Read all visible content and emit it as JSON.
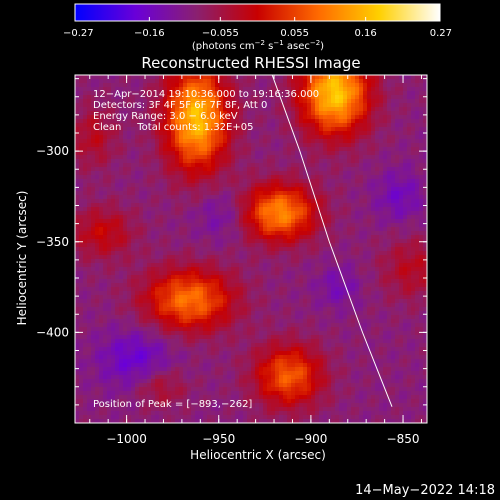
{
  "chart_data": {
    "type": "heatmap",
    "title": "Reconstructed RHESSI Image",
    "xlabel": "Heliocentric X (arcsec)",
    "ylabel": "Heliocentric Y (arcsec)",
    "xlim": [
      -1028,
      -837
    ],
    "ylim": [
      -450,
      -258
    ],
    "x_ticks": [
      -1000,
      -950,
      -900,
      -850
    ],
    "x_tick_labels": [
      "−1000",
      "−950",
      "−900",
      "−850"
    ],
    "y_ticks": [
      -300,
      -350,
      -400
    ],
    "y_tick_labels": [
      "−300",
      "−350",
      "−400"
    ],
    "colorbar": {
      "range": [
        -0.27,
        0.27
      ],
      "ticks": [
        -0.27,
        -0.16,
        -0.055,
        0.055,
        0.16,
        0.27
      ],
      "tick_labels": [
        "−0.27",
        "−0.16",
        "−0.055",
        "0.055",
        "0.16",
        "0.27"
      ],
      "unit_label_parts": [
        "(photons cm",
        "−2",
        " s",
        "−1",
        " asec",
        "−2",
        ")"
      ],
      "colors": [
        "#0000ff",
        "#6a00d8",
        "#8a2070",
        "#c80000",
        "#ff6a00",
        "#ffd000",
        "#ffffff"
      ]
    },
    "background_color": "#6a00b8",
    "annotations": [
      "12−Apr−2014 19:10:36.000 to 19:16:36.000",
      "Detectors: 3F 4F 5F 6F 7F 8F, Att 0",
      "Energy Range: 3.0 − 6.0 keV",
      "Clean     Total counts: 1.32E+05"
    ],
    "peak_label": "Position of Peak = [−893,−262]",
    "peak": [
      -893,
      -262
    ],
    "limb_curve": [
      [
        -921,
        -258
      ],
      [
        -906,
        -300
      ],
      [
        -890,
        -350
      ],
      [
        -872,
        -400
      ],
      [
        -856,
        -441
      ]
    ],
    "sources": [
      {
        "x": -962,
        "y": -282,
        "sx": 12,
        "sy": 20,
        "amp": 0.26
      },
      {
        "x": -887,
        "y": -268,
        "sx": 13,
        "sy": 16,
        "amp": 0.27
      },
      {
        "x": -917,
        "y": -334,
        "sx": 14,
        "sy": 11,
        "amp": 0.21
      },
      {
        "x": -966,
        "y": -382,
        "sx": 17,
        "sy": 12,
        "amp": 0.19
      },
      {
        "x": -1013,
        "y": -345,
        "sx": 12,
        "sy": 10,
        "amp": 0.09
      },
      {
        "x": -912,
        "y": -424,
        "sx": 13,
        "sy": 12,
        "amp": 0.17
      },
      {
        "x": -982,
        "y": -430,
        "sx": 10,
        "sy": 8,
        "amp": 0.07
      },
      {
        "x": -1018,
        "y": -292,
        "sx": 9,
        "sy": 12,
        "amp": 0.07
      },
      {
        "x": -845,
        "y": -365,
        "sx": 12,
        "sy": 12,
        "amp": 0.07
      }
    ],
    "blue_regions": [
      {
        "x": -995,
        "y": -415,
        "sx": 14,
        "sy": 12,
        "amp": 0.08
      },
      {
        "x": -852,
        "y": -325,
        "sx": 9,
        "sy": 10,
        "amp": 0.06
      },
      {
        "x": -948,
        "y": -335,
        "sx": 10,
        "sy": 10,
        "amp": 0.05
      },
      {
        "x": -885,
        "y": -375,
        "sx": 8,
        "sy": 8,
        "amp": 0.05
      }
    ]
  },
  "footer_timestamp": "14−May−2022 14:18"
}
